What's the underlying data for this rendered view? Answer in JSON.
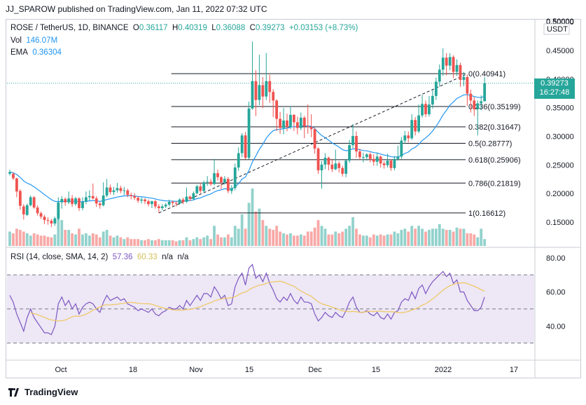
{
  "header": {
    "publish_line": "JJ_SPAROW published on TradingView.com, Jan 11, 2022 07:32 UTC"
  },
  "legend": {
    "symbol": "ROSE / TetherUS, 1D, BINANCE",
    "o_label": "O",
    "o_value": "0.36117",
    "h_label": "H",
    "h_value": "0.40319",
    "l_label": "L",
    "l_value": "0.36088",
    "c_label": "C",
    "c_value": "0.39273",
    "change": "+0.03153 (+8.73%)",
    "vol_label": "Vol",
    "vol_value": "146.07M",
    "ema_label": "EMA",
    "ema_value": "0.36304"
  },
  "rsi_legend": {
    "label": "RSI (14, close, SMA, 14, 2)",
    "rsi_value": "57.36",
    "sma_value": "60.33",
    "na1": "n/a",
    "na2": "n/a"
  },
  "price_tag": {
    "price": "0.39273",
    "countdown": "16:27:48",
    "color": "#26a69a"
  },
  "footer": {
    "brand": "TradingView"
  },
  "colors": {
    "up": "#26a69a",
    "down": "#ef5350",
    "ema": "#2196f3",
    "rsi": "#7e57c2",
    "rsi_ma": "#f0c75e",
    "rsi_band": "#ede7f6"
  },
  "chart_data": [
    {
      "type": "candlestick",
      "price_axis": {
        "unit": "USDT",
        "ticks": [
          "0.50000",
          "0.45000",
          "0.40000",
          "0.35000",
          "0.30000",
          "0.25000",
          "0.20000",
          "0.15000"
        ],
        "ylim": [
          0.12,
          0.5
        ]
      },
      "time_axis": {
        "labels": [
          "Oct",
          "18",
          "Nov",
          "15",
          "Dec",
          "15",
          "2022",
          "17"
        ]
      },
      "fibonacci": [
        {
          "label": "0(0.40941)",
          "value": 0.40941
        },
        {
          "label": "0.236(0.35199)",
          "value": 0.35199
        },
        {
          "label": "0.382(0.31647)",
          "value": 0.31647
        },
        {
          "label": "0.5(0.28777)",
          "value": 0.28777
        },
        {
          "label": "0.618(0.25906)",
          "value": 0.25906
        },
        {
          "label": "0.786(0.21819)",
          "value": 0.21819
        },
        {
          "label": "1(0.16612)",
          "value": 0.16612
        }
      ],
      "trend_line": {
        "from_value": 0.166,
        "to_value": 0.409
      },
      "candles": [
        [
          0.2375,
          0.2345,
          0.2415,
          0.2315
        ],
        [
          0.2265,
          0.2345,
          0.2375,
          0.2235
        ],
        [
          0.2035,
          0.2265,
          0.2275,
          0.1935
        ],
        [
          0.1785,
          0.2045,
          0.2075,
          0.1715
        ],
        [
          0.1635,
          0.1775,
          0.1815,
          0.1545
        ],
        [
          0.1795,
          0.1625,
          0.1825,
          0.1605
        ],
        [
          0.1935,
          0.1795,
          0.1965,
          0.1775
        ],
        [
          0.1755,
          0.1935,
          0.1955,
          0.1735
        ],
        [
          0.1655,
          0.1755,
          0.1795,
          0.1615
        ],
        [
          0.1595,
          0.1655,
          0.1685,
          0.1555
        ],
        [
          0.1535,
          0.1595,
          0.1625,
          0.1465
        ],
        [
          0.1525,
          0.1535,
          0.1585,
          0.1455
        ],
        [
          0.1475,
          0.1525,
          0.1555,
          0.1415
        ],
        [
          0.1565,
          0.1475,
          0.1595,
          0.1435
        ],
        [
          0.1845,
          0.1565,
          0.1935,
          0.1535
        ],
        [
          0.1905,
          0.1845,
          0.1955,
          0.1735
        ],
        [
          0.1845,
          0.1905,
          0.1935,
          0.1785
        ],
        [
          0.1915,
          0.1845,
          0.2035,
          0.1815
        ],
        [
          0.1815,
          0.1915,
          0.1975,
          0.1765
        ],
        [
          0.1915,
          0.1815,
          0.1945,
          0.1785
        ],
        [
          0.1745,
          0.1915,
          0.1935,
          0.1695
        ],
        [
          0.1855,
          0.1745,
          0.1935,
          0.1705
        ],
        [
          0.1935,
          0.1855,
          0.2035,
          0.1815
        ],
        [
          0.1955,
          0.1935,
          0.2055,
          0.1875
        ],
        [
          0.1915,
          0.1955,
          0.2175,
          0.1895
        ],
        [
          0.1825,
          0.1915,
          0.1955,
          0.1765
        ],
        [
          0.1795,
          0.1825,
          0.1855,
          0.1735
        ],
        [
          0.1965,
          0.1795,
          0.2195,
          0.1775
        ],
        [
          0.2105,
          0.1965,
          0.2255,
          0.1935
        ],
        [
          0.2025,
          0.2105,
          0.2155,
          0.1985
        ],
        [
          0.2055,
          0.2025,
          0.2115,
          0.1975
        ],
        [
          0.2095,
          0.2055,
          0.2185,
          0.2015
        ],
        [
          0.2045,
          0.2095,
          0.2135,
          0.2005
        ],
        [
          0.2055,
          0.2045,
          0.2115,
          0.1975
        ],
        [
          0.1975,
          0.2055,
          0.2085,
          0.1935
        ],
        [
          0.1955,
          0.1975,
          0.2015,
          0.1895
        ],
        [
          0.1925,
          0.1955,
          0.2005,
          0.1885
        ],
        [
          0.1875,
          0.1925,
          0.1955,
          0.1835
        ],
        [
          0.1895,
          0.1875,
          0.1935,
          0.1825
        ],
        [
          0.1865,
          0.1895,
          0.1915,
          0.1815
        ],
        [
          0.1815,
          0.1865,
          0.1895,
          0.1775
        ],
        [
          0.1865,
          0.1815,
          0.1875,
          0.1745
        ],
        [
          0.1775,
          0.1865,
          0.1885,
          0.1735
        ],
        [
          0.1745,
          0.1775,
          0.1815,
          0.1661
        ],
        [
          0.1775,
          0.1745,
          0.1815,
          0.1705
        ],
        [
          0.1805,
          0.1775,
          0.1835,
          0.1745
        ],
        [
          0.1855,
          0.1805,
          0.1895,
          0.1775
        ],
        [
          0.1835,
          0.1855,
          0.1875,
          0.1785
        ],
        [
          0.1825,
          0.1835,
          0.1865,
          0.1775
        ],
        [
          0.1895,
          0.1825,
          0.1915,
          0.1805
        ],
        [
          0.1855,
          0.1895,
          0.1925,
          0.1815
        ],
        [
          0.1945,
          0.1855,
          0.2105,
          0.1835
        ],
        [
          0.1905,
          0.1945,
          0.1965,
          0.1865
        ],
        [
          0.2005,
          0.1905,
          0.2035,
          0.1885
        ],
        [
          0.2125,
          0.2005,
          0.2155,
          0.1985
        ],
        [
          0.2045,
          0.2125,
          0.2185,
          0.2005
        ],
        [
          0.2195,
          0.2045,
          0.2225,
          0.2025
        ],
        [
          0.2205,
          0.2195,
          0.2305,
          0.2135
        ],
        [
          0.2165,
          0.2205,
          0.2255,
          0.2135
        ],
        [
          0.2355,
          0.2165,
          0.2605,
          0.2145
        ],
        [
          0.2285,
          0.2355,
          0.2415,
          0.2225
        ],
        [
          0.2195,
          0.2285,
          0.2305,
          0.2075
        ],
        [
          0.2255,
          0.2195,
          0.2305,
          0.2155
        ],
        [
          0.2045,
          0.2255,
          0.2285,
          0.2005
        ],
        [
          0.2095,
          0.2045,
          0.2145,
          0.1995
        ],
        [
          0.2455,
          0.2095,
          0.2525,
          0.2055
        ],
        [
          0.2705,
          0.2455,
          0.2805,
          0.2395
        ],
        [
          0.3015,
          0.2705,
          0.3055,
          0.2635
        ],
        [
          0.2625,
          0.3015,
          0.3075,
          0.2595
        ],
        [
          0.3485,
          0.2625,
          0.3605,
          0.2595
        ],
        [
          0.3965,
          0.3485,
          0.4655,
          0.3465
        ],
        [
          0.3635,
          0.3965,
          0.4155,
          0.3355
        ],
        [
          0.3895,
          0.3635,
          0.4425,
          0.3545
        ],
        [
          0.3695,
          0.3895,
          0.4035,
          0.3495
        ],
        [
          0.3965,
          0.3695,
          0.4455,
          0.3635
        ],
        [
          0.3775,
          0.3965,
          0.4075,
          0.3585
        ],
        [
          0.3625,
          0.3775,
          0.3825,
          0.3335
        ],
        [
          0.3305,
          0.3625,
          0.3645,
          0.3095
        ],
        [
          0.3145,
          0.3305,
          0.3425,
          0.3045
        ],
        [
          0.3275,
          0.3145,
          0.3495,
          0.3035
        ],
        [
          0.3165,
          0.3275,
          0.3395,
          0.3085
        ],
        [
          0.3375,
          0.3165,
          0.3525,
          0.3125
        ],
        [
          0.3245,
          0.3375,
          0.3385,
          0.3095
        ],
        [
          0.3145,
          0.3245,
          0.3345,
          0.3035
        ],
        [
          0.3325,
          0.3145,
          0.3415,
          0.3105
        ],
        [
          0.3175,
          0.3325,
          0.3355,
          0.2965
        ],
        [
          0.3165,
          0.3175,
          0.3555,
          0.3045
        ],
        [
          0.3125,
          0.3165,
          0.3385,
          0.2985
        ],
        [
          0.2785,
          0.3125,
          0.3145,
          0.2695
        ],
        [
          0.2405,
          0.2785,
          0.2805,
          0.2345
        ],
        [
          0.2505,
          0.2405,
          0.2565,
          0.2085
        ],
        [
          0.2625,
          0.2505,
          0.2705,
          0.2425
        ],
        [
          0.2505,
          0.2625,
          0.2645,
          0.2405
        ],
        [
          0.2425,
          0.2505,
          0.2605,
          0.2375
        ],
        [
          0.2525,
          0.2425,
          0.2765,
          0.2405
        ],
        [
          0.2445,
          0.2525,
          0.2565,
          0.2365
        ],
        [
          0.2345,
          0.2445,
          0.2485,
          0.2295
        ],
        [
          0.2575,
          0.2345,
          0.2605,
          0.2285
        ],
        [
          0.2845,
          0.2575,
          0.2935,
          0.2535
        ],
        [
          0.3005,
          0.2845,
          0.3215,
          0.2795
        ],
        [
          0.2735,
          0.3005,
          0.3085,
          0.2625
        ],
        [
          0.2635,
          0.2735,
          0.2785,
          0.2585
        ],
        [
          0.2635,
          0.2635,
          0.2715,
          0.2545
        ],
        [
          0.2685,
          0.2635,
          0.2705,
          0.2575
        ],
        [
          0.2605,
          0.2685,
          0.2715,
          0.2545
        ],
        [
          0.2555,
          0.2605,
          0.2685,
          0.2485
        ],
        [
          0.2645,
          0.2555,
          0.2715,
          0.2485
        ],
        [
          0.2525,
          0.2645,
          0.2665,
          0.2455
        ],
        [
          0.2495,
          0.2525,
          0.2565,
          0.2435
        ],
        [
          0.2575,
          0.2495,
          0.2695,
          0.2455
        ],
        [
          0.2445,
          0.2575,
          0.2595,
          0.2395
        ],
        [
          0.2605,
          0.2445,
          0.2655,
          0.2405
        ],
        [
          0.2645,
          0.2605,
          0.2835,
          0.2575
        ],
        [
          0.2925,
          0.2645,
          0.2985,
          0.2605
        ],
        [
          0.3015,
          0.2925,
          0.3095,
          0.2875
        ],
        [
          0.2965,
          0.3015,
          0.3085,
          0.2895
        ],
        [
          0.3285,
          0.2965,
          0.3385,
          0.2935
        ],
        [
          0.3085,
          0.3285,
          0.3335,
          0.3015
        ],
        [
          0.3365,
          0.3085,
          0.3555,
          0.3055
        ],
        [
          0.3565,
          0.3365,
          0.3725,
          0.3325
        ],
        [
          0.3385,
          0.3565,
          0.3625,
          0.3335
        ],
        [
          0.3555,
          0.3385,
          0.3705,
          0.3345
        ],
        [
          0.3705,
          0.3555,
          0.3815,
          0.3485
        ],
        [
          0.3955,
          0.3705,
          0.4025,
          0.3635
        ],
        [
          0.4165,
          0.3955,
          0.4255,
          0.3865
        ],
        [
          0.4375,
          0.4165,
          0.4535,
          0.4055
        ],
        [
          0.4235,
          0.4375,
          0.4455,
          0.4065
        ],
        [
          0.4385,
          0.4235,
          0.4455,
          0.4155
        ],
        [
          0.4125,
          0.4385,
          0.4415,
          0.4015
        ],
        [
          0.4245,
          0.4125,
          0.4345,
          0.4055
        ],
        [
          0.3985,
          0.4245,
          0.4285,
          0.3865
        ],
        [
          0.4035,
          0.3985,
          0.4125,
          0.3875
        ],
        [
          0.3745,
          0.4035,
          0.4075,
          0.3535
        ],
        [
          0.3625,
          0.3745,
          0.3815,
          0.3415
        ],
        [
          0.3475,
          0.3625,
          0.3685,
          0.3355
        ],
        [
          0.3575,
          0.3475,
          0.3625,
          0.3015
        ],
        [
          0.3612,
          0.3575,
          0.3715,
          0.3455
        ],
        [
          0.3927,
          0.3612,
          0.4032,
          0.3609
        ]
      ],
      "volume_relative": [
        0.25,
        0.22,
        0.3,
        0.28,
        0.25,
        0.22,
        0.18,
        0.22,
        0.2,
        0.18,
        0.18,
        0.16,
        0.15,
        0.2,
        0.75,
        0.45,
        0.28,
        0.28,
        0.22,
        0.2,
        0.3,
        0.2,
        0.22,
        0.18,
        0.22,
        0.2,
        0.15,
        0.25,
        0.28,
        0.18,
        0.15,
        0.18,
        0.15,
        0.12,
        0.15,
        0.12,
        0.12,
        0.12,
        0.1,
        0.1,
        0.12,
        0.1,
        0.1,
        0.12,
        0.1,
        0.1,
        0.1,
        0.1,
        0.08,
        0.1,
        0.1,
        0.15,
        0.1,
        0.12,
        0.15,
        0.12,
        0.15,
        0.18,
        0.12,
        0.35,
        0.2,
        0.15,
        0.15,
        0.2,
        0.15,
        0.35,
        0.3,
        0.55,
        0.3,
        0.75,
        1.0,
        0.6,
        0.65,
        0.45,
        0.35,
        0.3,
        0.28,
        0.35,
        0.25,
        0.22,
        0.2,
        0.22,
        0.18,
        0.18,
        0.2,
        0.18,
        0.25,
        0.25,
        0.32,
        0.45,
        0.35,
        0.3,
        0.2,
        0.2,
        0.25,
        0.22,
        0.25,
        0.3,
        0.35,
        0.5,
        0.3,
        0.2,
        0.18,
        0.18,
        0.15,
        0.2,
        0.18,
        0.2,
        0.18,
        0.2,
        0.2,
        0.25,
        0.22,
        0.28,
        0.3,
        0.25,
        0.35,
        0.3,
        0.35,
        0.3,
        0.25,
        0.28,
        0.3,
        0.3,
        0.38,
        0.3,
        0.28,
        0.28,
        0.25,
        0.32,
        0.3,
        0.3,
        0.22,
        0.22,
        0.2,
        0.15,
        0.3,
        0.12
      ],
      "ema_length": 20
    },
    {
      "type": "line",
      "title": "RSI (14, close, SMA, 14, 2)",
      "y_ticks": [
        "80.00",
        "60.00",
        "40.00"
      ],
      "ylim": [
        20,
        82
      ],
      "bands": [
        70,
        50,
        30
      ],
      "series": [
        {
          "name": "RSI",
          "values": [
            58,
            54,
            47,
            42,
            37,
            45,
            50,
            45,
            42,
            39,
            36,
            36,
            35,
            40,
            53,
            57,
            52,
            55,
            50,
            53,
            47,
            51,
            53,
            54,
            53,
            50,
            48,
            54,
            58,
            55,
            56,
            57,
            55,
            56,
            53,
            52,
            51,
            49,
            50,
            49,
            48,
            50,
            47,
            46,
            48,
            49,
            51,
            50,
            50,
            52,
            50,
            55,
            52,
            55,
            58,
            55,
            59,
            59,
            57,
            63,
            60,
            56,
            58,
            52,
            53,
            63,
            68,
            71,
            64,
            74,
            76,
            68,
            70,
            66,
            71,
            65,
            61,
            56,
            54,
            57,
            55,
            59,
            55,
            53,
            57,
            54,
            54,
            53,
            47,
            43,
            45,
            48,
            46,
            45,
            48,
            46,
            45,
            49,
            54,
            57,
            51,
            48,
            48,
            49,
            47,
            46,
            48,
            45,
            44,
            47,
            44,
            48,
            49,
            54,
            56,
            55,
            60,
            56,
            62,
            64,
            59,
            63,
            66,
            68,
            70,
            72,
            69,
            71,
            65,
            67,
            60,
            60,
            55,
            52,
            49,
            49,
            51,
            57
          ]
        }
      ]
    }
  ]
}
